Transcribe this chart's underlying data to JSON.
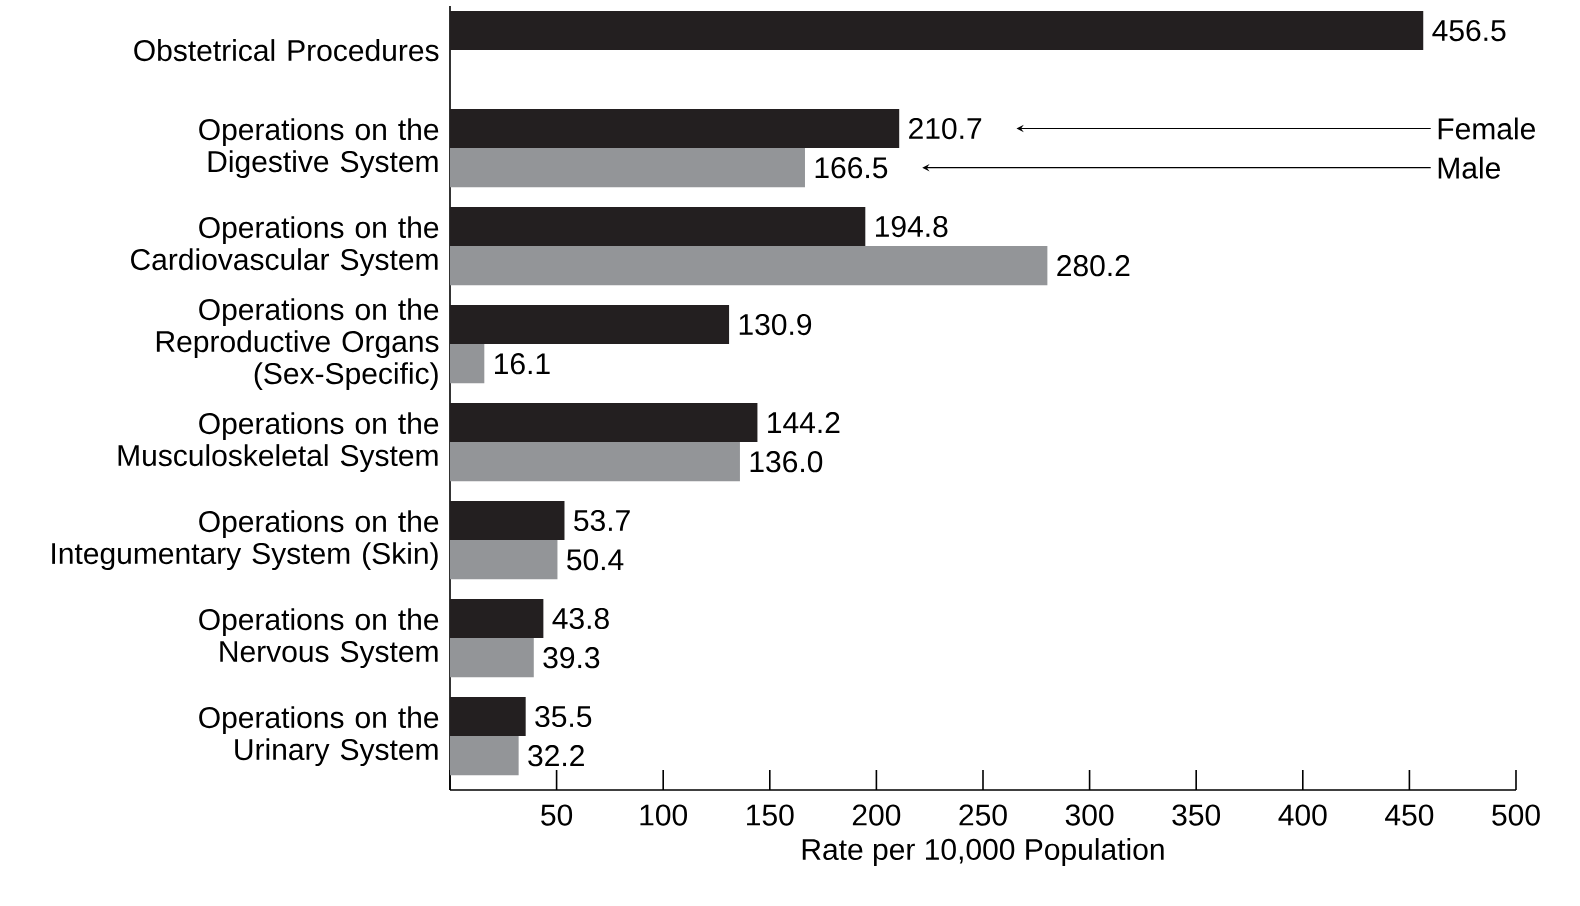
{
  "chart_data": {
    "type": "bar",
    "orientation": "horizontal",
    "categories": [
      "Obstetrical Procedures",
      "Operations on the Digestive System",
      "Operations on the Cardiovascular System",
      "Operations on the Reproductive Organs (Sex-Specific)",
      "Operations on the Musculoskeletal System",
      "Operations on the Integumentary System (Skin)",
      "Operations on the Nervous System",
      "Operations on the Urinary System"
    ],
    "series": [
      {
        "name": "Female",
        "color": "#231f20",
        "values": [
          456.5,
          210.7,
          194.8,
          130.9,
          144.2,
          53.7,
          43.8,
          35.5
        ],
        "value_labels": [
          "456.5",
          "210.7",
          "194.8",
          "130.9",
          "144.2",
          "53.7",
          "43.8",
          "35.5"
        ]
      },
      {
        "name": "Male",
        "color": "#939598",
        "values": [
          null,
          166.5,
          280.2,
          16.1,
          136.0,
          50.4,
          39.3,
          32.2
        ],
        "value_labels": [
          null,
          "166.5",
          "280.2",
          "16.1",
          "136.0",
          "50.4",
          "39.3",
          "32.2"
        ]
      }
    ],
    "xlabel": "Rate per 10,000 Population",
    "xlim": [
      0,
      500
    ],
    "xticks": [
      {
        "value": 0,
        "label": null
      },
      50,
      100,
      150,
      200,
      250,
      300,
      350,
      400,
      450,
      500
    ],
    "grid": false
  }
}
